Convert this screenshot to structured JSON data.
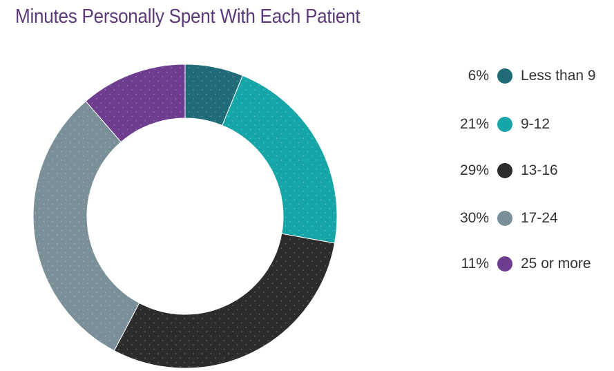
{
  "chart_data": {
    "type": "pie",
    "title": "Minutes Personally Spent With Each Patient",
    "donut": true,
    "legend_position": "right",
    "categories": [
      "Less than 9",
      "9-12",
      "13-16",
      "17-24",
      "25 or more"
    ],
    "values": [
      6,
      21,
      29,
      30,
      11
    ],
    "value_labels": [
      "6%",
      "21%",
      "29%",
      "30%",
      "11%"
    ],
    "colors": [
      "#1f6b77",
      "#17a6a7",
      "#2c2c2c",
      "#7b8f99",
      "#6e3d8f"
    ]
  }
}
